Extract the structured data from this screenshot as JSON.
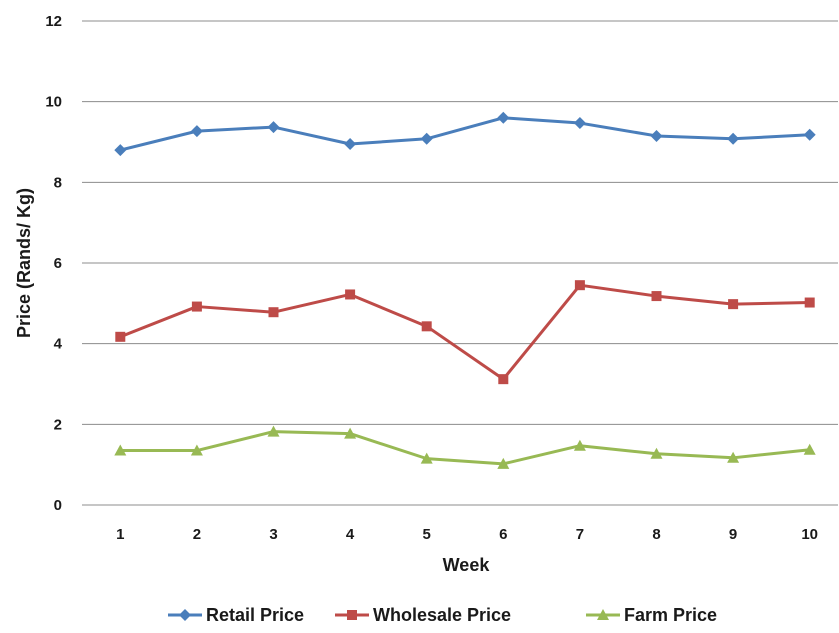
{
  "chart_data": {
    "type": "line",
    "title": "",
    "xlabel": "Week",
    "ylabel": "Price (Rands/ Kg)",
    "categories": [
      "1",
      "2",
      "3",
      "4",
      "5",
      "6",
      "7",
      "8",
      "9",
      "10"
    ],
    "ylim": [
      0,
      12
    ],
    "yticks": [
      "0",
      "2",
      "4",
      "6",
      "8",
      "10",
      "12"
    ],
    "grid": "horizontal",
    "legend_position": "bottom",
    "series": [
      {
        "name": "Retail Price",
        "color": "#4a7ebb",
        "marker": "diamond",
        "values": [
          8.8,
          9.27,
          9.37,
          8.95,
          9.08,
          9.6,
          9.47,
          9.15,
          9.08,
          9.18
        ]
      },
      {
        "name": "Wholesale Price",
        "color": "#be4b48",
        "marker": "square",
        "values": [
          4.17,
          4.92,
          4.78,
          5.22,
          4.43,
          3.12,
          5.45,
          5.18,
          4.98,
          5.02
        ]
      },
      {
        "name": "Farm Price",
        "color": "#98b954",
        "marker": "triangle",
        "values": [
          1.35,
          1.35,
          1.82,
          1.77,
          1.15,
          1.02,
          1.47,
          1.27,
          1.17,
          1.37
        ]
      }
    ]
  }
}
